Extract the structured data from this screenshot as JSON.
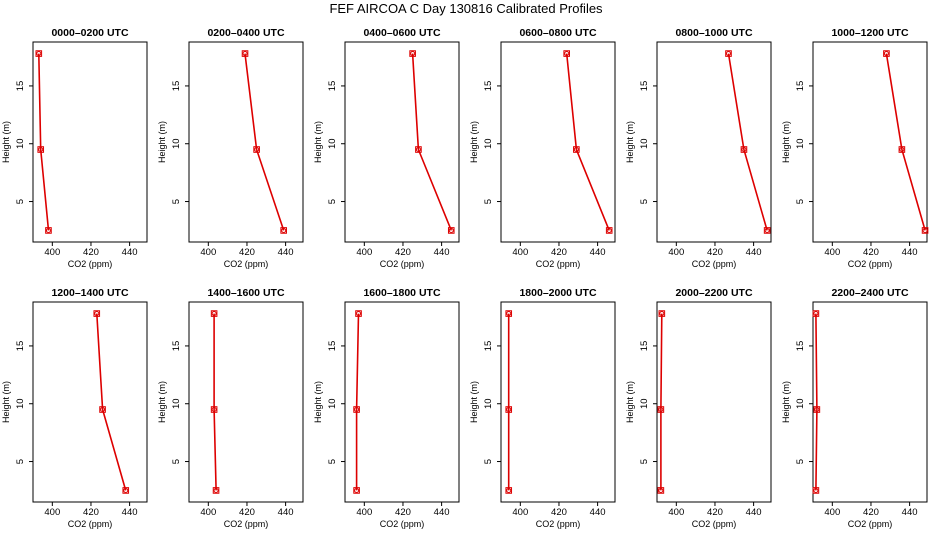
{
  "figure": {
    "title": "FEF AIRCOA C  Day 130816  Calibrated Profiles"
  },
  "colors": {
    "series": "#dd0000",
    "axis": "#000000"
  },
  "chart_data": [
    {
      "type": "line",
      "title": "0000–0200 UTC",
      "xlabel": "CO2 (ppm)",
      "ylabel": "Height (m)",
      "xlim": [
        390,
        449
      ],
      "ylim": [
        1.5,
        18.8
      ],
      "xticks": [
        "400",
        "420",
        "440"
      ],
      "yticks": [
        "5",
        "10",
        "15"
      ],
      "x": [
        393.0,
        394.0,
        398.0
      ],
      "y": [
        17.8,
        9.5,
        2.5
      ]
    },
    {
      "type": "line",
      "title": "0200–0400 UTC",
      "xlabel": "CO2 (ppm)",
      "ylabel": "Height (m)",
      "xlim": [
        390,
        449
      ],
      "ylim": [
        1.5,
        18.8
      ],
      "xticks": [
        "400",
        "420",
        "440"
      ],
      "yticks": [
        "5",
        "10",
        "15"
      ],
      "x": [
        419.0,
        425.0,
        439.0
      ],
      "y": [
        17.8,
        9.5,
        2.5
      ]
    },
    {
      "type": "line",
      "title": "0400–0600 UTC",
      "xlabel": "CO2 (ppm)",
      "ylabel": "Height (m)",
      "xlim": [
        390,
        449
      ],
      "ylim": [
        1.5,
        18.8
      ],
      "xticks": [
        "400",
        "420",
        "440"
      ],
      "yticks": [
        "5",
        "10",
        "15"
      ],
      "x": [
        425.0,
        428.0,
        445.0
      ],
      "y": [
        17.8,
        9.5,
        2.5
      ]
    },
    {
      "type": "line",
      "title": "0600–0800 UTC",
      "xlabel": "CO2 (ppm)",
      "ylabel": "Height (m)",
      "xlim": [
        390,
        449
      ],
      "ylim": [
        1.5,
        18.8
      ],
      "xticks": [
        "400",
        "420",
        "440"
      ],
      "yticks": [
        "5",
        "10",
        "15"
      ],
      "x": [
        424.0,
        429.0,
        446.0
      ],
      "y": [
        17.8,
        9.5,
        2.5
      ]
    },
    {
      "type": "line",
      "title": "0800–1000 UTC",
      "xlabel": "CO2 (ppm)",
      "ylabel": "Height (m)",
      "xlim": [
        390,
        449
      ],
      "ylim": [
        1.5,
        18.8
      ],
      "xticks": [
        "400",
        "420",
        "440"
      ],
      "yticks": [
        "5",
        "10",
        "15"
      ],
      "x": [
        427.0,
        435.0,
        447.0
      ],
      "y": [
        17.8,
        9.5,
        2.5
      ]
    },
    {
      "type": "line",
      "title": "1000–1200 UTC",
      "xlabel": "CO2 (ppm)",
      "ylabel": "Height (m)",
      "xlim": [
        390,
        449
      ],
      "ylim": [
        1.5,
        18.8
      ],
      "xticks": [
        "400",
        "420",
        "440"
      ],
      "yticks": [
        "5",
        "10",
        "15"
      ],
      "x": [
        428.0,
        436.0,
        448.0
      ],
      "y": [
        17.8,
        9.5,
        2.5
      ]
    },
    {
      "type": "line",
      "title": "1200–1400 UTC",
      "xlabel": "CO2 (ppm)",
      "ylabel": "Height (m)",
      "xlim": [
        390,
        449
      ],
      "ylim": [
        1.5,
        18.8
      ],
      "xticks": [
        "400",
        "420",
        "440"
      ],
      "yticks": [
        "5",
        "10",
        "15"
      ],
      "x": [
        423.0,
        426.0,
        438.0
      ],
      "y": [
        17.8,
        9.5,
        2.5
      ]
    },
    {
      "type": "line",
      "title": "1400–1600 UTC",
      "xlabel": "CO2 (ppm)",
      "ylabel": "Height (m)",
      "xlim": [
        390,
        449
      ],
      "ylim": [
        1.5,
        18.8
      ],
      "xticks": [
        "400",
        "420",
        "440"
      ],
      "yticks": [
        "5",
        "10",
        "15"
      ],
      "x": [
        403.0,
        403.0,
        404.0
      ],
      "y": [
        17.8,
        9.5,
        2.5
      ]
    },
    {
      "type": "line",
      "title": "1600–1800 UTC",
      "xlabel": "CO2 (ppm)",
      "ylabel": "Height (m)",
      "xlim": [
        390,
        449
      ],
      "ylim": [
        1.5,
        18.8
      ],
      "xticks": [
        "400",
        "420",
        "440"
      ],
      "yticks": [
        "5",
        "10",
        "15"
      ],
      "x": [
        397.0,
        396.0,
        396.0
      ],
      "y": [
        17.8,
        9.5,
        2.5
      ]
    },
    {
      "type": "line",
      "title": "1800–2000 UTC",
      "xlabel": "CO2 (ppm)",
      "ylabel": "Height (m)",
      "xlim": [
        390,
        449
      ],
      "ylim": [
        1.5,
        18.8
      ],
      "xticks": [
        "400",
        "420",
        "440"
      ],
      "yticks": [
        "5",
        "10",
        "15"
      ],
      "x": [
        394.0,
        394.0,
        394.0
      ],
      "y": [
        17.8,
        9.5,
        2.5
      ]
    },
    {
      "type": "line",
      "title": "2000–2200 UTC",
      "xlabel": "CO2 (ppm)",
      "ylabel": "Height (m)",
      "xlim": [
        390,
        449
      ],
      "ylim": [
        1.5,
        18.8
      ],
      "xticks": [
        "400",
        "420",
        "440"
      ],
      "yticks": [
        "5",
        "10",
        "15"
      ],
      "x": [
        392.5,
        392.0,
        392.0
      ],
      "y": [
        17.8,
        9.5,
        2.5
      ]
    },
    {
      "type": "line",
      "title": "2200–2400 UTC",
      "xlabel": "CO2 (ppm)",
      "ylabel": "Height (m)",
      "xlim": [
        390,
        449
      ],
      "ylim": [
        1.5,
        18.8
      ],
      "xticks": [
        "400",
        "420",
        "440"
      ],
      "yticks": [
        "5",
        "10",
        "15"
      ],
      "x": [
        391.5,
        392.0,
        391.5
      ],
      "y": [
        17.8,
        9.5,
        2.5
      ]
    }
  ]
}
